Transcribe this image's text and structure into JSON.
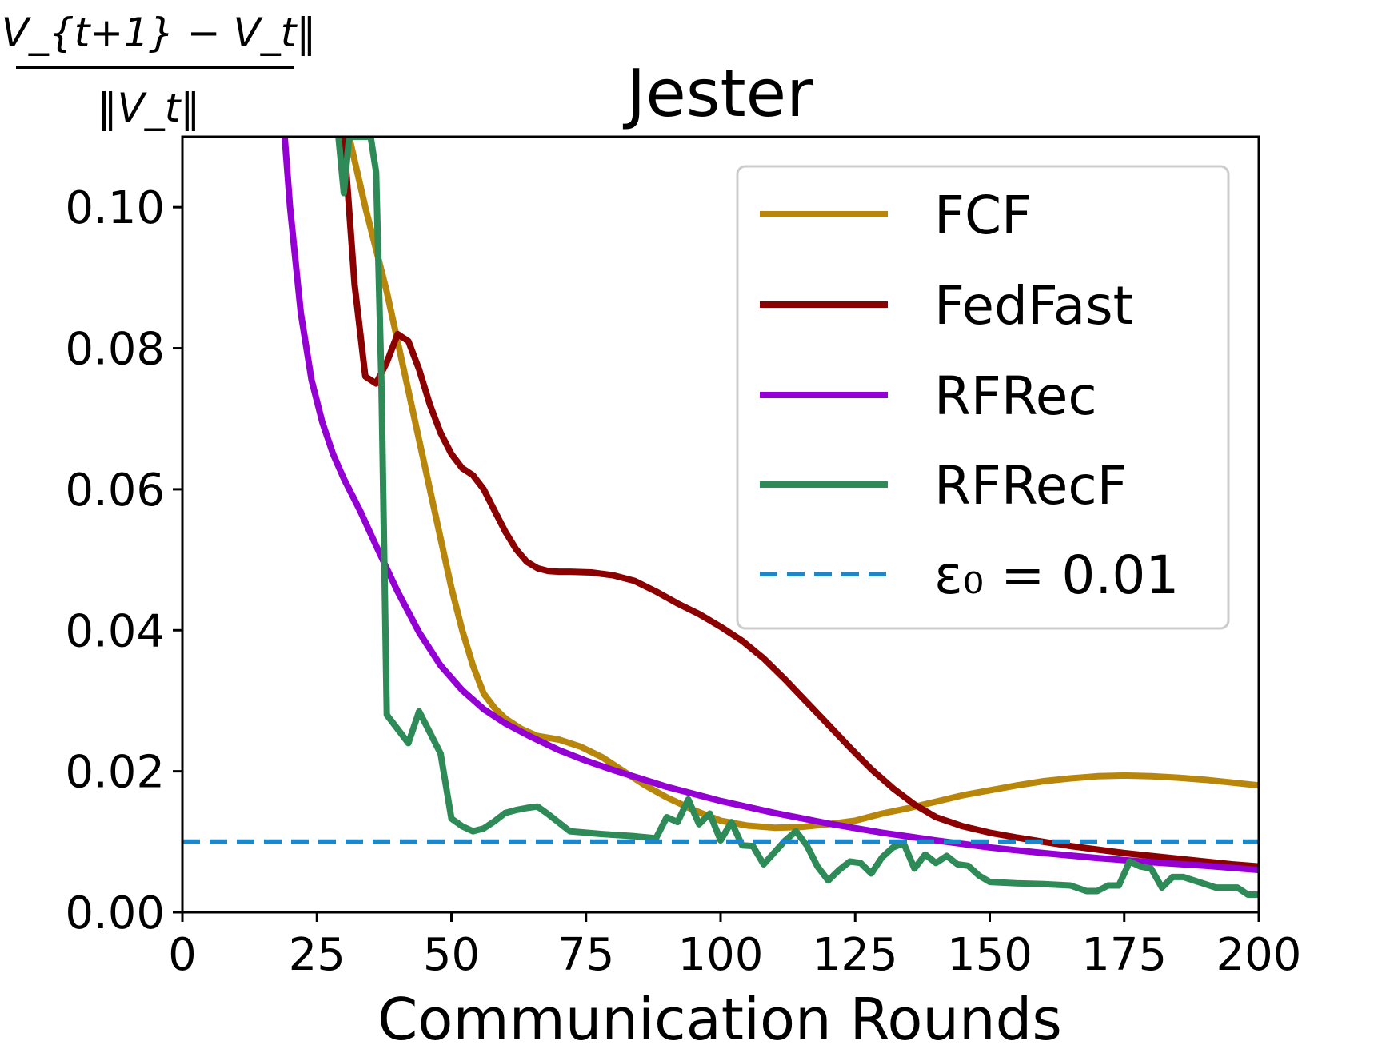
{
  "chart_data": {
    "type": "line",
    "title": "Jester",
    "xlabel": "Communication Rounds",
    "ylabel": {
      "numerator": "‖V_{t+1} − V_t‖",
      "denominator": "‖V_t‖"
    },
    "xlim": [
      0,
      200
    ],
    "ylim": [
      0,
      0.11
    ],
    "xticks": [
      "0",
      "25",
      "50",
      "75",
      "100",
      "125",
      "150",
      "175",
      "200"
    ],
    "xtick_values": [
      0,
      25,
      50,
      75,
      100,
      125,
      150,
      175,
      200
    ],
    "yticks": [
      "0.00",
      "0.02",
      "0.04",
      "0.06",
      "0.08",
      "0.10"
    ],
    "ytick_values": [
      0,
      0.02,
      0.04,
      0.06,
      0.08,
      0.1
    ],
    "grid": false,
    "legend_position": "top-right",
    "series": [
      {
        "name": "FCF",
        "color": "#b8860b",
        "style": "solid",
        "x": [
          31,
          34,
          36,
          38,
          40,
          42,
          44,
          46,
          48,
          50,
          52,
          54,
          56,
          58,
          60,
          63,
          66,
          70,
          74,
          78,
          82,
          86,
          90,
          95,
          100,
          105,
          110,
          115,
          120,
          125,
          130,
          135,
          140,
          145,
          150,
          155,
          160,
          165,
          170,
          175,
          180,
          185,
          190,
          195,
          200
        ],
        "y": [
          0.11,
          0.1,
          0.094,
          0.088,
          0.081,
          0.074,
          0.067,
          0.06,
          0.053,
          0.046,
          0.04,
          0.035,
          0.031,
          0.029,
          0.0275,
          0.026,
          0.025,
          0.0245,
          0.0235,
          0.022,
          0.02,
          0.018,
          0.0163,
          0.0145,
          0.013,
          0.0123,
          0.012,
          0.0121,
          0.0125,
          0.013,
          0.014,
          0.0148,
          0.0157,
          0.0166,
          0.0173,
          0.018,
          0.0186,
          0.019,
          0.0193,
          0.0194,
          0.0193,
          0.0191,
          0.0188,
          0.0184,
          0.018
        ]
      },
      {
        "name": "FedFast",
        "color": "#8b0000",
        "style": "solid",
        "x": [
          30,
          32,
          34,
          36,
          38,
          40,
          42,
          44,
          46,
          48,
          50,
          52,
          54,
          56,
          58,
          60,
          62,
          64,
          66,
          68,
          70,
          72,
          76,
          80,
          84,
          88,
          92,
          96,
          100,
          104,
          108,
          112,
          116,
          120,
          124,
          128,
          132,
          136,
          140,
          145,
          150,
          155,
          160,
          165,
          170,
          175,
          180,
          185,
          190,
          195,
          200
        ],
        "y": [
          0.11,
          0.089,
          0.076,
          0.075,
          0.078,
          0.082,
          0.081,
          0.077,
          0.072,
          0.068,
          0.065,
          0.063,
          0.062,
          0.06,
          0.057,
          0.054,
          0.0515,
          0.0497,
          0.0488,
          0.0484,
          0.0483,
          0.0483,
          0.0482,
          0.0478,
          0.047,
          0.0455,
          0.0438,
          0.0423,
          0.0405,
          0.0385,
          0.036,
          0.033,
          0.0298,
          0.0266,
          0.0234,
          0.0203,
          0.0176,
          0.0153,
          0.0135,
          0.0122,
          0.0113,
          0.0106,
          0.01,
          0.0094,
          0.0089,
          0.0084,
          0.008,
          0.0076,
          0.0072,
          0.0068,
          0.0065
        ]
      },
      {
        "name": "RFRec",
        "color": "#9400d3",
        "style": "solid",
        "x": [
          19,
          20,
          22,
          24,
          26,
          28,
          30,
          33,
          36,
          40,
          44,
          48,
          52,
          56,
          60,
          65,
          70,
          75,
          80,
          90,
          100,
          110,
          120,
          130,
          140,
          150,
          160,
          170,
          180,
          190,
          200
        ],
        "y": [
          0.11,
          0.1,
          0.085,
          0.0755,
          0.0695,
          0.065,
          0.0615,
          0.057,
          0.052,
          0.0455,
          0.0397,
          0.035,
          0.0315,
          0.0288,
          0.0268,
          0.0248,
          0.023,
          0.0215,
          0.0202,
          0.0178,
          0.0158,
          0.0141,
          0.0126,
          0.0113,
          0.0102,
          0.0092,
          0.0084,
          0.0077,
          0.0071,
          0.0066,
          0.006
        ]
      },
      {
        "name": "RFRecF",
        "color": "#2e8b57",
        "style": "solid",
        "x": [
          29,
          30,
          31,
          34,
          35,
          36,
          37,
          38,
          40,
          42,
          44,
          46,
          48,
          50,
          52,
          54,
          56,
          58,
          60,
          62,
          64,
          66,
          68,
          72,
          78,
          84,
          88,
          90,
          92,
          94,
          96,
          98,
          100,
          102,
          104,
          106,
          108,
          110,
          112,
          114,
          116,
          118,
          120,
          122,
          124,
          126,
          128,
          130,
          132,
          134,
          136,
          138,
          140,
          142,
          144,
          146,
          148,
          150,
          155,
          160,
          165,
          168,
          170,
          172,
          174,
          176,
          178,
          180,
          182,
          184,
          186,
          188,
          190,
          192,
          194,
          196,
          198,
          200
        ],
        "y": [
          0.11,
          0.102,
          0.11,
          0.11,
          0.11,
          0.105,
          0.075,
          0.028,
          0.026,
          0.024,
          0.0285,
          0.0255,
          0.0225,
          0.0133,
          0.0122,
          0.0115,
          0.0119,
          0.0129,
          0.0141,
          0.0145,
          0.0148,
          0.015,
          0.0139,
          0.0115,
          0.0111,
          0.0108,
          0.0105,
          0.0135,
          0.0128,
          0.016,
          0.0125,
          0.014,
          0.0102,
          0.0128,
          0.0095,
          0.0094,
          0.0068,
          0.0085,
          0.0102,
          0.0115,
          0.0095,
          0.0065,
          0.0045,
          0.006,
          0.0072,
          0.007,
          0.0055,
          0.0078,
          0.0092,
          0.0098,
          0.0062,
          0.0082,
          0.007,
          0.008,
          0.0068,
          0.0066,
          0.0052,
          0.0043,
          0.0041,
          0.004,
          0.0038,
          0.003,
          0.003,
          0.0038,
          0.0038,
          0.0072,
          0.0065,
          0.0062,
          0.0035,
          0.005,
          0.005,
          0.0045,
          0.004,
          0.0035,
          0.0035,
          0.0035,
          0.0025,
          0.0025
        ]
      },
      {
        "name": "ε₀ = 0.01",
        "color": "#1f86c8",
        "style": "dashed",
        "x": [
          0,
          200
        ],
        "y": [
          0.01,
          0.01
        ]
      }
    ]
  }
}
